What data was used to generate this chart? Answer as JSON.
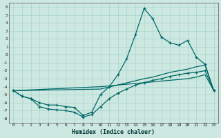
{
  "xlabel": "Humidex (Indice chaleur)",
  "bg_color": "#cce8e0",
  "grid_color": "#a8d4cc",
  "line_color": "#006868",
  "xlim": [
    -0.5,
    23.5
  ],
  "ylim": [
    -8.5,
    6.5
  ],
  "yticks": [
    6,
    5,
    4,
    3,
    2,
    1,
    0,
    -1,
    -2,
    -3,
    -4,
    -5,
    -6,
    -7,
    -8
  ],
  "xticks": [
    0,
    1,
    2,
    3,
    4,
    5,
    6,
    7,
    8,
    9,
    10,
    11,
    12,
    13,
    14,
    15,
    16,
    17,
    18,
    19,
    20,
    21,
    22,
    23
  ],
  "line_peak_x": [
    0,
    1,
    2,
    3,
    4,
    5,
    6,
    7,
    8,
    9,
    10,
    11,
    12,
    13,
    14,
    15,
    16,
    17,
    18,
    19,
    20,
    21,
    22,
    23
  ],
  "line_peak_y": [
    -4.5,
    -5.2,
    -5.5,
    -6.0,
    -6.3,
    -6.3,
    -6.5,
    -6.6,
    -7.6,
    -7.2,
    -5.0,
    -4.0,
    -2.5,
    -0.5,
    2.5,
    5.8,
    4.5,
    2.2,
    1.5,
    1.2,
    1.8,
    -0.3,
    -1.2,
    -4.5
  ],
  "line_flat1_x": [
    0,
    10,
    20,
    21,
    22,
    23
  ],
  "line_flat1_y": [
    -4.5,
    -4.0,
    -3.0,
    -2.8,
    -2.5,
    -4.5
  ],
  "line_flat2_x": [
    0,
    10,
    15,
    16,
    17,
    18,
    19,
    20,
    21,
    22,
    23
  ],
  "line_flat2_y": [
    -4.5,
    -4.3,
    -3.0,
    -2.8,
    -2.5,
    -2.2,
    -2.0,
    -1.8,
    -1.5,
    -1.3,
    -4.5
  ],
  "line_dip_x": [
    0,
    1,
    2,
    3,
    4,
    5,
    6,
    7,
    8,
    9,
    10,
    11,
    12,
    13,
    14,
    15,
    16,
    17,
    18,
    19,
    20,
    21,
    22,
    23
  ],
  "line_dip_y": [
    -4.5,
    -5.2,
    -5.5,
    -6.5,
    -6.8,
    -6.9,
    -7.0,
    -7.2,
    -7.8,
    -7.5,
    -6.5,
    -5.5,
    -4.8,
    -4.3,
    -3.8,
    -3.5,
    -3.2,
    -3.0,
    -2.7,
    -2.5,
    -2.3,
    -2.2,
    -2.0,
    -4.5
  ]
}
